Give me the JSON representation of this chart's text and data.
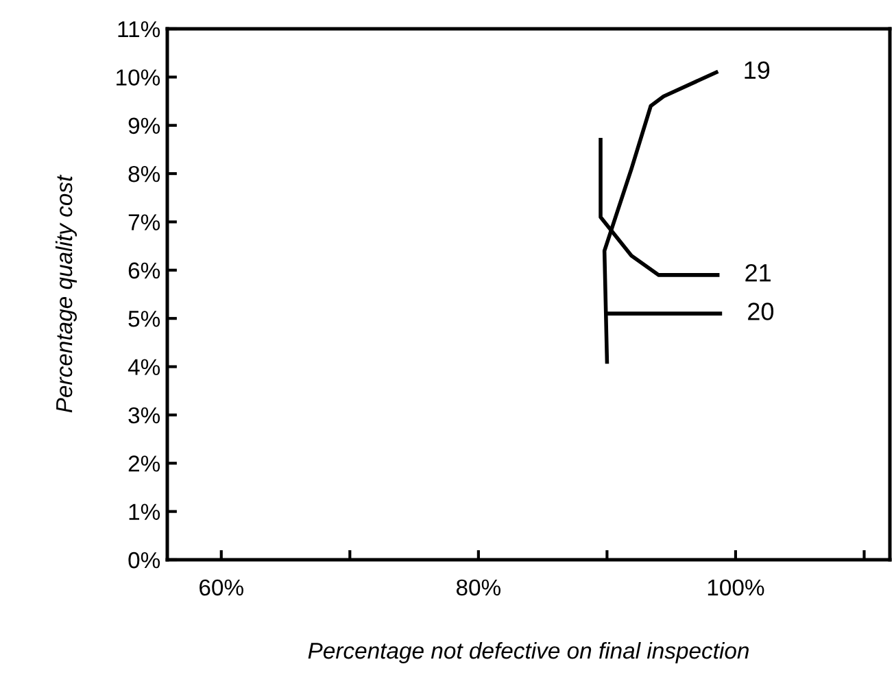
{
  "chart_data": {
    "type": "line",
    "xlabel": "Percentage not defective on final inspection",
    "ylabel": "Percentage quality cost",
    "xlim": [
      55.8,
      112
    ],
    "ylim": [
      0,
      11
    ],
    "xticks": [
      {
        "value": 60,
        "label": "60%"
      },
      {
        "value": 70,
        "label": null
      },
      {
        "value": 80,
        "label": "80%"
      },
      {
        "value": 90,
        "label": null
      },
      {
        "value": 100,
        "label": "100%"
      },
      {
        "value": 110,
        "label": null
      }
    ],
    "yticks": [
      {
        "value": 0,
        "label": "0%"
      },
      {
        "value": 1,
        "label": "1%"
      },
      {
        "value": 2,
        "label": "2%"
      },
      {
        "value": 3,
        "label": "3%"
      },
      {
        "value": 4,
        "label": "4%"
      },
      {
        "value": 5,
        "label": "5%"
      },
      {
        "value": 6,
        "label": "6%"
      },
      {
        "value": 7,
        "label": "7%"
      },
      {
        "value": 8,
        "label": "8%"
      },
      {
        "value": 9,
        "label": "9%"
      },
      {
        "value": 10,
        "label": "10%"
      },
      {
        "value": 11,
        "label": "11%"
      }
    ],
    "grid": false,
    "legend": false,
    "marker": "none",
    "line_style": "solid",
    "series": [
      {
        "name": "19",
        "color": "#000000",
        "x": [
          90.0,
          89.8,
          91.9,
          93.4,
          94.4,
          98.5
        ],
        "values": [
          4.1,
          6.4,
          8.1,
          9.4,
          9.6,
          10.1
        ]
      },
      {
        "name": "21",
        "color": "#000000",
        "x": [
          89.5,
          89.5,
          91.9,
          94.0,
          98.6
        ],
        "values": [
          8.7,
          7.1,
          6.3,
          5.9,
          5.9
        ]
      },
      {
        "name": "20",
        "color": "#000000",
        "x": [
          90.0,
          98.8
        ],
        "values": [
          5.1,
          5.1
        ]
      }
    ]
  }
}
